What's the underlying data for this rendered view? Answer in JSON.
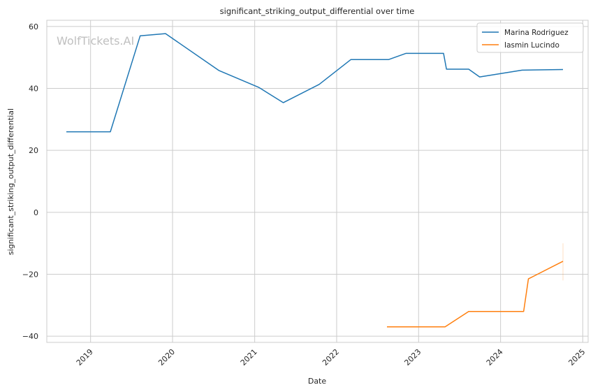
{
  "chart_data": {
    "type": "line",
    "title": "significant_striking_output_differential over time",
    "xlabel": "Date",
    "ylabel": "significant_striking_output_differential",
    "watermark": "WolfTickets.AI",
    "x_ticks": [
      "2019",
      "2020",
      "2021",
      "2022",
      "2023",
      "2024",
      "2025"
    ],
    "y_ticks": [
      "60",
      "40",
      "20",
      "0",
      "−20",
      "−40"
    ],
    "xlim": [
      "2018-06-20",
      "2025-01-25"
    ],
    "ylim": [
      -42,
      62
    ],
    "grid": true,
    "legend_position": "top-right",
    "series": [
      {
        "name": "Marina Rodriguez",
        "color": "#1f77b4",
        "points": [
          {
            "x": "2018-09-15",
            "y": 26.0
          },
          {
            "x": "2019-03-30",
            "y": 26.0
          },
          {
            "x": "2019-08-10",
            "y": 57.0
          },
          {
            "x": "2019-12-01",
            "y": 57.7
          },
          {
            "x": "2020-07-25",
            "y": 45.8
          },
          {
            "x": "2021-01-20",
            "y": 40.3
          },
          {
            "x": "2021-05-08",
            "y": 35.4
          },
          {
            "x": "2021-10-15",
            "y": 41.3
          },
          {
            "x": "2022-03-05",
            "y": 49.3
          },
          {
            "x": "2022-08-20",
            "y": 49.3
          },
          {
            "x": "2022-11-05",
            "y": 51.3
          },
          {
            "x": "2023-04-22",
            "y": 51.3
          },
          {
            "x": "2023-05-05",
            "y": 46.2
          },
          {
            "x": "2023-08-12",
            "y": 46.2
          },
          {
            "x": "2023-09-30",
            "y": 43.7
          },
          {
            "x": "2024-04-06",
            "y": 45.9
          },
          {
            "x": "2024-10-05",
            "y": 46.1
          }
        ]
      },
      {
        "name": "Iasmin Lucindo",
        "color": "#ff7f0e",
        "points": [
          {
            "x": "2022-08-13",
            "y": -37.0
          },
          {
            "x": "2023-04-29",
            "y": -37.0
          },
          {
            "x": "2023-08-12",
            "y": -32.0
          },
          {
            "x": "2024-04-13",
            "y": -32.0
          },
          {
            "x": "2024-05-04",
            "y": -21.5
          },
          {
            "x": "2024-10-05",
            "y": -15.8
          }
        ]
      }
    ]
  }
}
